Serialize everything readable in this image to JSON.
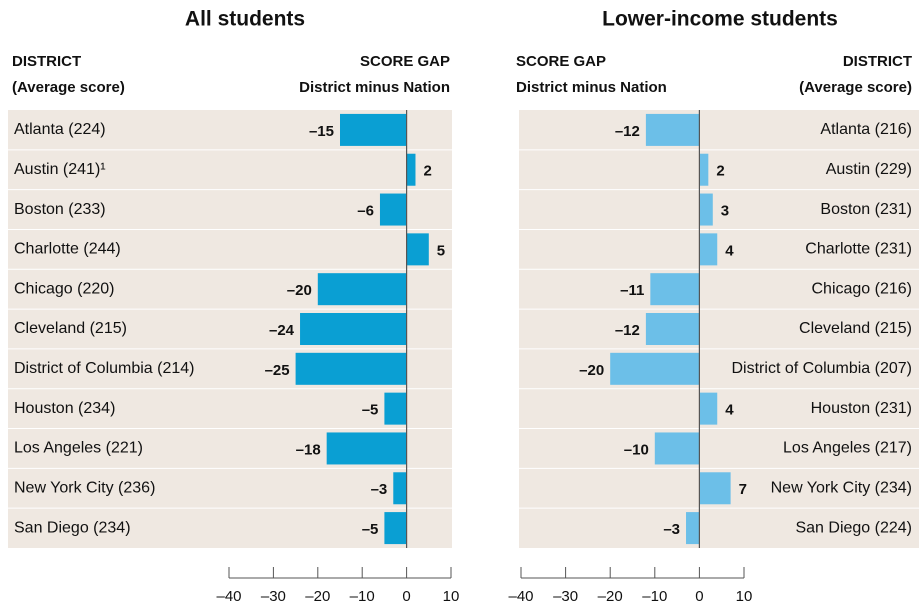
{
  "chart_data": [
    {
      "type": "bar",
      "orientation": "horizontal",
      "title": "All students",
      "column_headers": {
        "category": [
          "DISTRICT",
          "(Average score)"
        ],
        "value": [
          "SCORE GAP",
          "District minus Nation"
        ]
      },
      "categories": [
        "Atlanta (224)",
        "Austin (241)¹",
        "Boston (233)",
        "Charlotte (244)",
        "Chicago (220)",
        "Cleveland (215)",
        "District of Columbia (214)",
        "Houston (234)",
        "Los Angeles (221)",
        "New York City (236)",
        "San Diego (234)"
      ],
      "values": [
        -15,
        2,
        -6,
        5,
        -20,
        -24,
        -25,
        -5,
        -18,
        -3,
        -5
      ],
      "value_labels": [
        "–15",
        "2",
        "–6",
        "5",
        "–20",
        "–24",
        "–25",
        "–5",
        "–18",
        "–3",
        "–5"
      ],
      "color": "#0a9fd3",
      "xlim": [
        -40,
        10
      ],
      "xticks": [
        {
          "value": -40,
          "label": "–40"
        },
        {
          "value": -30,
          "label": "–30"
        },
        {
          "value": -20,
          "label": "–20"
        },
        {
          "value": -10,
          "label": "–10"
        },
        0,
        10
      ]
    },
    {
      "type": "bar",
      "orientation": "horizontal",
      "title": "Lower-income students",
      "column_headers": {
        "category": [
          "DISTRICT",
          "(Average score)"
        ],
        "value": [
          "SCORE GAP",
          "District minus Nation"
        ]
      },
      "categories": [
        "Atlanta (216)",
        "Austin (229)",
        "Boston (231)",
        "Charlotte (231)",
        "Chicago (216)",
        "Cleveland (215)",
        "District of Columbia (207)",
        "Houston (231)",
        "Los Angeles (217)",
        "New York City (234)",
        "San Diego (224)"
      ],
      "values": [
        -12,
        2,
        3,
        4,
        -11,
        -12,
        -20,
        4,
        -10,
        7,
        -3
      ],
      "value_labels": [
        "–12",
        "2",
        "3",
        "4",
        "–11",
        "–12",
        "–20",
        "4",
        "–10",
        "7",
        "–3"
      ],
      "color": "#6cbfe8",
      "xlim": [
        -40,
        10
      ],
      "xticks": [
        {
          "value": -40,
          "label": "–40"
        },
        {
          "value": -30,
          "label": "–30"
        },
        {
          "value": -20,
          "label": "–20"
        },
        {
          "value": -10,
          "label": "–10"
        },
        0,
        10
      ]
    }
  ]
}
